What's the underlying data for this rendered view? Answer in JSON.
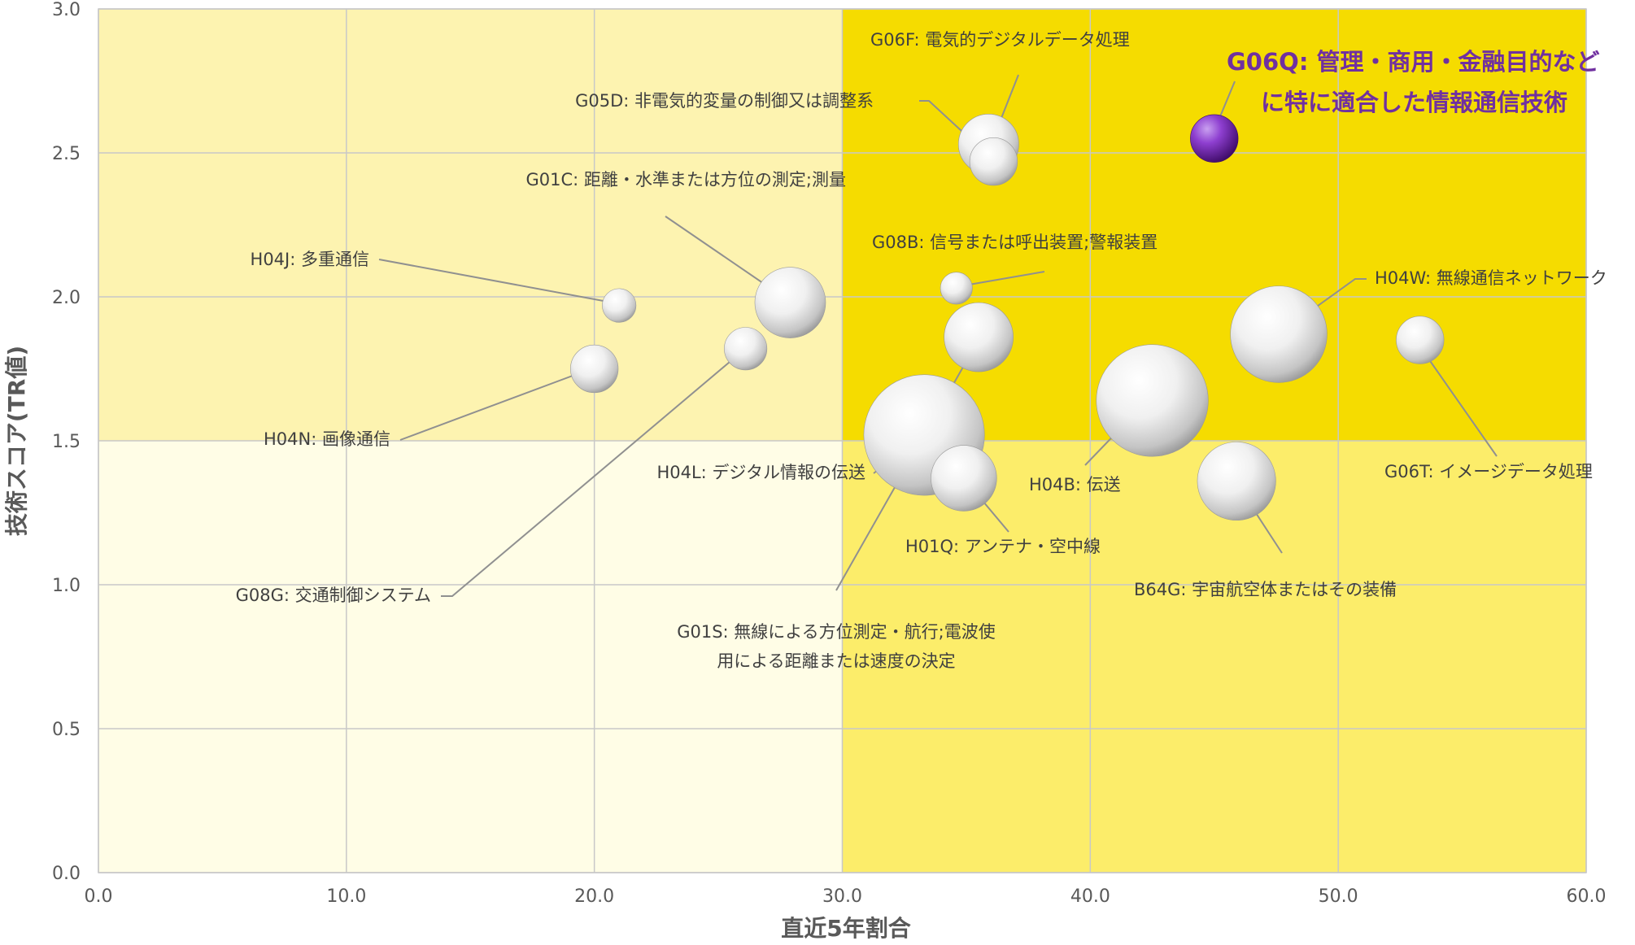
{
  "chart_data": {
    "type": "scatter",
    "xlabel": "直近5年割合",
    "ylabel": "技術スコア(TR値)",
    "xlim": [
      0,
      60
    ],
    "ylim": [
      0,
      3
    ],
    "x_ticks": [
      "0.0",
      "10.0",
      "20.0",
      "30.0",
      "40.0",
      "50.0",
      "60.0"
    ],
    "y_ticks": [
      "0.0",
      "0.5",
      "1.0",
      "1.5",
      "2.0",
      "2.5",
      "3.0"
    ],
    "grid": true,
    "quadrant_divider": {
      "x": 30,
      "y": 1.5
    },
    "quadrant_colors": {
      "top_left": "#fdf3b0",
      "top_right": "#f5dc00",
      "bottom_left": "#fffde6",
      "bottom_right": "#fced6a"
    },
    "highlight_color": "#7030a0",
    "points": [
      {
        "id": "G06Q",
        "label": "G06Q: 管理・商用・金融目的などに特に適合した情報通信技術",
        "label_lines": [
          "G06Q: 管理・商用・金融目的など",
          "に特に適合した情報通信技術"
        ],
        "x": 45.0,
        "y": 2.55,
        "size": 1.0,
        "highlight": true
      },
      {
        "id": "G06F",
        "label": "G06F: 電気的デジタルデータ処理",
        "label_lines": [
          "G06F: 電気的デジタルデータ処理"
        ],
        "x": 35.9,
        "y": 2.53,
        "size": 1.6,
        "highlight": false
      },
      {
        "id": "G05D",
        "label": "G05D: 非電気的変量の制御又は調整系",
        "label_lines": [
          "G05D: 非電気的変量の制御又は調整系"
        ],
        "x": 36.1,
        "y": 2.47,
        "size": 1.0,
        "highlight": false
      },
      {
        "id": "G01C",
        "label": "G01C: 距離・水準または方位の測定;測量",
        "label_lines": [
          "G01C: 距離・水準または方位の測定;測量"
        ],
        "x": 27.9,
        "y": 1.98,
        "size": 2.2,
        "highlight": false
      },
      {
        "id": "H04J",
        "label": "H04J: 多重通信",
        "label_lines": [
          "H04J: 多重通信"
        ],
        "x": 21.0,
        "y": 1.97,
        "size": 0.5,
        "highlight": false
      },
      {
        "id": "G08B",
        "label": "G08B: 信号または呼出装置;警報装置",
        "label_lines": [
          "G08B: 信号または呼出装置;警報装置"
        ],
        "x": 34.6,
        "y": 2.03,
        "size": 0.45,
        "highlight": false
      },
      {
        "id": "H04W",
        "label": "H04W: 無線通信ネットワーク",
        "label_lines": [
          "H04W: 無線通信ネットワーク"
        ],
        "x": 47.6,
        "y": 1.87,
        "size": 4.1,
        "highlight": false
      },
      {
        "id": "G06T",
        "label": "G06T: イメージデータ処理",
        "label_lines": [
          "G06T: イメージデータ処理"
        ],
        "x": 53.3,
        "y": 1.85,
        "size": 1.0,
        "highlight": false
      },
      {
        "id": "H04N",
        "label": "H04N: 画像通信",
        "label_lines": [
          "H04N: 画像通信"
        ],
        "x": 20.0,
        "y": 1.75,
        "size": 1.0,
        "highlight": false
      },
      {
        "id": "G08G",
        "label": "G08G: 交通制御システム",
        "label_lines": [
          "G08G: 交通制御システム"
        ],
        "x": 26.1,
        "y": 1.82,
        "size": 0.8,
        "highlight": false
      },
      {
        "id": "G01S",
        "label": "G01S: 無線による方位測定・航行;電波使用による距離または速度の決定",
        "label_lines": [
          "G01S: 無線による方位測定・航行;電波使",
          "用による距離または速度の決定"
        ],
        "x": 35.5,
        "y": 1.86,
        "size": 2.1,
        "highlight": false
      },
      {
        "id": "H04L",
        "label": "H04L: デジタル情報の伝送",
        "label_lines": [
          "H04L: デジタル情報の伝送"
        ],
        "x": 33.3,
        "y": 1.52,
        "size": 6.4,
        "highlight": false
      },
      {
        "id": "H04B",
        "label": "H04B: 伝送",
        "label_lines": [
          "H04B: 伝送"
        ],
        "x": 42.5,
        "y": 1.64,
        "size": 5.5,
        "highlight": false
      },
      {
        "id": "H01Q",
        "label": "H01Q: アンテナ・空中線",
        "label_lines": [
          "H01Q: アンテナ・空中線"
        ],
        "x": 34.9,
        "y": 1.37,
        "size": 1.9,
        "highlight": false
      },
      {
        "id": "B64G",
        "label": "B64G: 宇宙航空体またはその装備",
        "label_lines": [
          "B64G: 宇宙航空体またはその装備"
        ],
        "x": 45.9,
        "y": 1.36,
        "size": 2.7,
        "highlight": false
      }
    ]
  }
}
